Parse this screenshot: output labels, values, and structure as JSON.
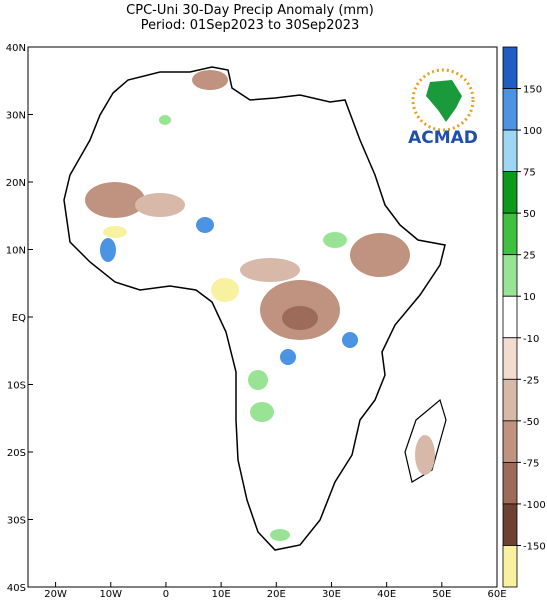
{
  "header": {
    "title": "CPC-Uni 30-Day Precip Anomaly (mm)",
    "subtitle": "Period: 01Sep2023 to 30Sep2023"
  },
  "map": {
    "lonlim": [
      -25,
      60
    ],
    "latlim": [
      -40,
      40
    ],
    "lon_ticks": [
      {
        "value": -20,
        "label": "20W"
      },
      {
        "value": -10,
        "label": "10W"
      },
      0,
      {
        "value": 10,
        "label": "10E"
      },
      {
        "value": 20,
        "label": "20E"
      },
      {
        "value": 30,
        "label": "30E"
      },
      {
        "value": 40,
        "label": "40E"
      },
      {
        "value": 50,
        "label": "50E"
      },
      {
        "value": 60,
        "label": "60E"
      }
    ],
    "lat_ticks": [
      {
        "value": 40,
        "label": "40N"
      },
      {
        "value": 30,
        "label": "30N"
      },
      {
        "value": 20,
        "label": "20N"
      },
      {
        "value": 10,
        "label": "10N"
      },
      {
        "value": 0,
        "label": "EQ"
      },
      {
        "value": -10,
        "label": "10S"
      },
      {
        "value": -20,
        "label": "20S"
      },
      {
        "value": -30,
        "label": "30S"
      },
      {
        "value": -40,
        "label": "40S"
      }
    ]
  },
  "colorbar": {
    "levels": [
      150,
      100,
      75,
      50,
      25,
      10,
      -10,
      -25,
      -50,
      -75,
      -100,
      -150
    ],
    "colors": [
      "#1f5cc4",
      "#4b93e3",
      "#9fd6f2",
      "#0b9a1c",
      "#3fc040",
      "#98e494",
      "#ffffff",
      "#f1dccf",
      "#d8b9a9",
      "#bf9380",
      "#9c6b5a",
      "#6d4233",
      "#f7f1a0"
    ]
  },
  "logo": {
    "text": "ACMAD"
  }
}
